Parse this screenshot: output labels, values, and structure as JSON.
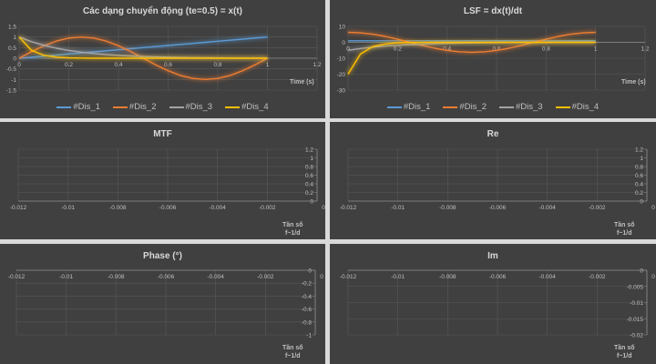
{
  "colors": {
    "Dis_1": "#5b9bd5",
    "Dis_2": "#ed7d31",
    "Dis_3": "#a5a5a5",
    "Dis_4": "#ffc000"
  },
  "chart_data": [
    {
      "type": "line",
      "title": "Các dạng chuyển động (te=0.5)  = x(t)",
      "xlabel": "Time (s)",
      "ylabel": "",
      "xlim": [
        0,
        1.2
      ],
      "ylim": [
        -1.5,
        1.5
      ],
      "xticks": [
        "0",
        "0.2",
        "0.4",
        "0.6",
        "0.8",
        "1",
        "1.2"
      ],
      "yticks": [
        "-1.5",
        "-1",
        "-0.5",
        "0",
        "0.5",
        "1",
        "1.5"
      ],
      "grid": true,
      "legend": "bottom",
      "x": [
        0,
        0.05,
        0.1,
        0.15,
        0.2,
        0.25,
        0.3,
        0.35,
        0.4,
        0.45,
        0.5,
        0.55,
        0.6,
        0.65,
        0.7,
        0.75,
        0.8,
        0.85,
        0.9,
        0.95,
        1
      ],
      "series": [
        {
          "name": "#Dis_1",
          "values": [
            0,
            0.05,
            0.1,
            0.15,
            0.2,
            0.25,
            0.3,
            0.35,
            0.4,
            0.45,
            0.5,
            0.55,
            0.6,
            0.65,
            0.7,
            0.75,
            0.8,
            0.85,
            0.9,
            0.95,
            1
          ]
        },
        {
          "name": "#Dis_2",
          "values": [
            0,
            0.309,
            0.588,
            0.809,
            0.951,
            1,
            0.951,
            0.809,
            0.588,
            0.309,
            0,
            -0.309,
            -0.588,
            -0.809,
            -0.951,
            -1,
            -0.951,
            -0.809,
            -0.588,
            -0.309,
            0
          ]
        },
        {
          "name": "#Dis_3",
          "values": [
            1,
            0.779,
            0.607,
            0.472,
            0.368,
            0.287,
            0.223,
            0.174,
            0.135,
            0.105,
            0.082,
            0.064,
            0.05,
            0.039,
            0.03,
            0.024,
            0.018,
            0.014,
            0.011,
            0.009,
            0.007
          ]
        },
        {
          "name": "#Dis_4",
          "values": [
            1,
            0.368,
            0.135,
            0.05,
            0.018,
            0.007,
            0.002,
            0.001,
            0,
            0,
            0,
            0,
            0,
            0,
            0,
            0,
            0,
            0,
            0,
            0,
            0
          ]
        }
      ]
    },
    {
      "type": "line",
      "title": "LSF = dx(t)/dt",
      "xlabel": "Time (s)",
      "ylabel": "",
      "xlim": [
        0,
        1.2
      ],
      "ylim": [
        -30,
        10
      ],
      "xticks": [
        "0",
        "0.2",
        "0.4",
        "0.6",
        "0.8",
        "1",
        "1.2"
      ],
      "yticks": [
        "-30",
        "-20",
        "-10",
        "0",
        "10"
      ],
      "grid": true,
      "legend": "bottom",
      "x": [
        0,
        0.05,
        0.1,
        0.15,
        0.2,
        0.25,
        0.3,
        0.35,
        0.4,
        0.45,
        0.5,
        0.55,
        0.6,
        0.65,
        0.7,
        0.75,
        0.8,
        0.85,
        0.9,
        0.95,
        1
      ],
      "series": [
        {
          "name": "#Dis_1",
          "values": [
            1,
            1,
            1,
            1,
            1,
            1,
            1,
            1,
            1,
            1,
            1,
            1,
            1,
            1,
            1,
            1,
            1,
            1,
            1,
            1,
            1
          ]
        },
        {
          "name": "#Dis_2",
          "values": [
            6.28,
            5.97,
            5.08,
            3.69,
            1.94,
            0,
            -1.94,
            -3.69,
            -5.08,
            -5.97,
            -6.28,
            -5.97,
            -5.08,
            -3.69,
            -1.94,
            0,
            1.94,
            3.69,
            5.08,
            5.97,
            6.28
          ]
        },
        {
          "name": "#Dis_3",
          "values": [
            -5,
            -3.89,
            -3.03,
            -2.36,
            -1.84,
            -1.43,
            -1.12,
            -0.87,
            -0.68,
            -0.53,
            -0.41,
            -0.32,
            -0.25,
            -0.19,
            -0.15,
            -0.12,
            -0.09,
            -0.07,
            -0.05,
            -0.04,
            -0.03
          ]
        },
        {
          "name": "#Dis_4",
          "values": [
            -20,
            -7.36,
            -2.71,
            -1,
            -0.37,
            -0.13,
            -0.05,
            -0.02,
            0,
            0,
            0,
            0,
            0,
            0,
            0,
            0,
            0,
            0,
            0,
            0,
            0
          ]
        }
      ]
    },
    {
      "type": "line",
      "title": "MTF",
      "xlabel": "Tần số f~1/d",
      "xlabel_lines": [
        "Tần số",
        "f~1/d"
      ],
      "xlim": [
        -0.012,
        0
      ],
      "ylim": [
        0,
        1.2
      ],
      "xticks": [
        "-0.012",
        "-0.01",
        "-0.008",
        "-0.006",
        "-0.004",
        "-0.002",
        "0"
      ],
      "yticks": [
        "0",
        "0.2",
        "0.4",
        "0.6",
        "0.8",
        "1",
        "1.2"
      ],
      "grid": true,
      "series": []
    },
    {
      "type": "line",
      "title": "Re",
      "xlabel": "Tần số f~1/d",
      "xlabel_lines": [
        "Tần số",
        "f~1/d"
      ],
      "xlim": [
        -0.012,
        0
      ],
      "ylim": [
        0,
        1.2
      ],
      "xticks": [
        "-0.012",
        "-0.01",
        "-0.008",
        "-0.006",
        "-0.004",
        "-0.002",
        "0"
      ],
      "yticks": [
        "0",
        "0.2",
        "0.4",
        "0.6",
        "0.8",
        "1",
        "1.2"
      ],
      "grid": true,
      "series": []
    },
    {
      "type": "line",
      "title": "Phase (°)",
      "xlabel": "Tần số f~1/d",
      "xlabel_lines": [
        "Tần số",
        "f~1/d"
      ],
      "xlim": [
        -0.012,
        0
      ],
      "ylim": [
        -1,
        0
      ],
      "xticks": [
        "-0.012",
        "-0.01",
        "-0.008",
        "-0.006",
        "-0.004",
        "-0.002",
        "0"
      ],
      "yticks": [
        "-1",
        "-0.8",
        "-0.6",
        "-0.4",
        "-0.2",
        "0"
      ],
      "grid": true,
      "series": []
    },
    {
      "type": "line",
      "title": "Im",
      "xlabel": "Tần số f~1/d",
      "xlabel_lines": [
        "Tần số",
        "f~1/d"
      ],
      "xlim": [
        -0.012,
        0
      ],
      "ylim": [
        -0.02,
        0
      ],
      "xticks": [
        "-0.012",
        "-0.01",
        "-0.008",
        "-0.006",
        "-0.004",
        "-0.002",
        "0"
      ],
      "yticks": [
        "-0.02",
        "-0.015",
        "-0.01",
        "-0.005",
        "0"
      ],
      "grid": true,
      "series": []
    }
  ]
}
